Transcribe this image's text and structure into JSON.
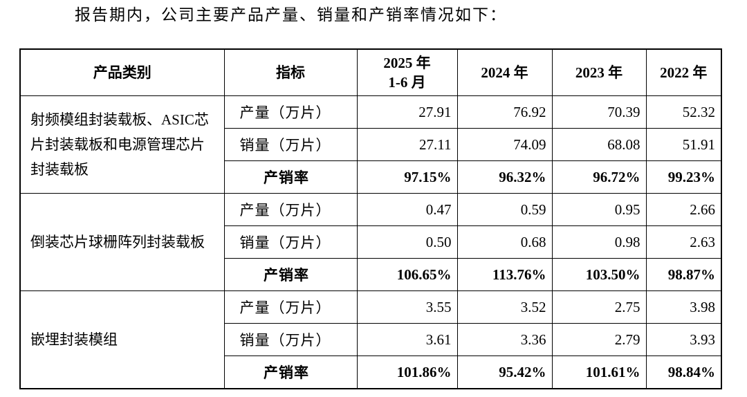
{
  "intro": "报告期内，公司主要产品产量、销量和产销率情况如下：",
  "table": {
    "header": [
      "产品类别",
      "指标",
      "2025 年\n1-6 月",
      "2024 年",
      "2023 年",
      "2022 年"
    ],
    "groups": [
      {
        "category": "射频模组封装载板、ASIC芯片封装载板和电源管理芯片封装载板",
        "rows": [
          [
            "产量（万片）",
            "27.91",
            "76.92",
            "70.39",
            "52.32"
          ],
          [
            "销量（万片）",
            "27.11",
            "74.09",
            "68.08",
            "51.91"
          ],
          [
            "产销率",
            "97.15%",
            "96.32%",
            "96.72%",
            "99.23%"
          ]
        ]
      },
      {
        "category": "倒装芯片球栅阵列封装载板",
        "rows": [
          [
            "产量（万片）",
            "0.47",
            "0.59",
            "0.95",
            "2.66"
          ],
          [
            "销量（万片）",
            "0.50",
            "0.68",
            "0.98",
            "2.63"
          ],
          [
            "产销率",
            "106.65%",
            "113.76%",
            "103.50%",
            "98.87%"
          ]
        ]
      },
      {
        "category": "嵌埋封装模组",
        "rows": [
          [
            "产量（万片）",
            "3.55",
            "3.52",
            "2.75",
            "3.98"
          ],
          [
            "销量（万片）",
            "3.61",
            "3.36",
            "2.79",
            "3.93"
          ],
          [
            "产销率",
            "101.86%",
            "95.42%",
            "101.61%",
            "98.84%"
          ]
        ]
      }
    ]
  }
}
